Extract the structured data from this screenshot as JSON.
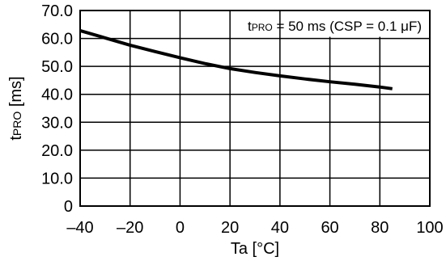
{
  "chart_data": {
    "type": "line",
    "xlabel": "Ta [°C]",
    "ylabel_main": "t",
    "ylabel_sub": "PRO",
    "ylabel_unit": " [ms]",
    "xlim": [
      -40,
      100
    ],
    "ylim": [
      0,
      70
    ],
    "x_ticks": [
      -40,
      -20,
      0,
      20,
      40,
      60,
      80,
      100
    ],
    "x_tick_labels": [
      "–40",
      "–20",
      "0",
      "20",
      "40",
      "60",
      "80",
      "100"
    ],
    "y_ticks": [
      0,
      10,
      20,
      30,
      40,
      50,
      60,
      70
    ],
    "y_tick_labels": [
      "0",
      "10.0",
      "20.0",
      "30.0",
      "40.0",
      "50.0",
      "60.0",
      "70.0"
    ],
    "grid": true,
    "annotation": {
      "main": "t",
      "sub": "PRO",
      "rest": " = 50 ms (CSP = 0.1 μF)",
      "placement": "top-right"
    },
    "series": [
      {
        "x": [
          -40,
          -30,
          -20,
          -10,
          0,
          10,
          20,
          30,
          40,
          50,
          60,
          70,
          80,
          85
        ],
        "y": [
          62.8,
          60.2,
          57.6,
          55.3,
          53.1,
          51.0,
          49.2,
          47.8,
          46.6,
          45.5,
          44.5,
          43.6,
          42.6,
          42.0
        ]
      }
    ]
  }
}
